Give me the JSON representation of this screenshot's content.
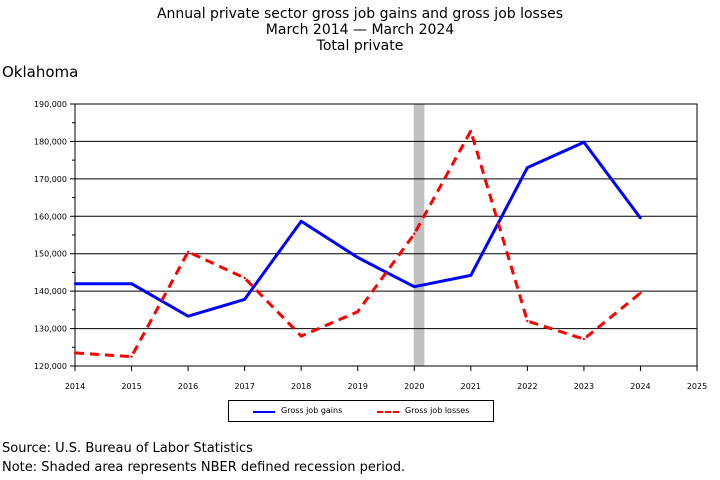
{
  "header": {
    "title_line1": "Annual private sector gross job gains and gross job losses",
    "title_line2": "March 2014 — March 2024",
    "title_line3": "Total private",
    "region": "Oklahoma"
  },
  "footer": {
    "source": "Source: U.S. Bureau of Labor Statistics",
    "note": "Note: Shaded area represents NBER defined recession period."
  },
  "chart_data": {
    "type": "line",
    "title": "Annual private sector gross job gains and gross job losses",
    "subtitle": "March 2014 — March 2024",
    "x_ticks": [
      "2014",
      "2015",
      "2016",
      "2017",
      "2018",
      "2019",
      "2020",
      "2021",
      "2022",
      "2023",
      "2024",
      "2025"
    ],
    "y_ticks": [
      "120,000",
      "130,000",
      "140,000",
      "150,000",
      "160,000",
      "170,000",
      "180,000",
      "190,000"
    ],
    "xlim": [
      2014,
      2025
    ],
    "ylim": [
      120000,
      190000
    ],
    "grid": "horizontal",
    "legend_position": "bottom",
    "recession_shade": {
      "start": 2020.0,
      "end": 2020.17,
      "color": "#c0c0c0"
    },
    "x": [
      2014,
      2015,
      2016,
      2017,
      2018,
      2019,
      2020,
      2021,
      2022,
      2023,
      2024
    ],
    "series": [
      {
        "name": "Gross job gains",
        "color": "#0000ff",
        "style": "solid",
        "values": [
          142000,
          142000,
          133300,
          137800,
          158700,
          149000,
          141200,
          144200,
          173000,
          179800,
          159500
        ]
      },
      {
        "name": "Gross job losses",
        "color": "#ff0000",
        "style": "dashed",
        "values": [
          123500,
          122500,
          150500,
          143500,
          128000,
          134500,
          155300,
          182800,
          132000,
          127200,
          139500
        ]
      }
    ]
  }
}
